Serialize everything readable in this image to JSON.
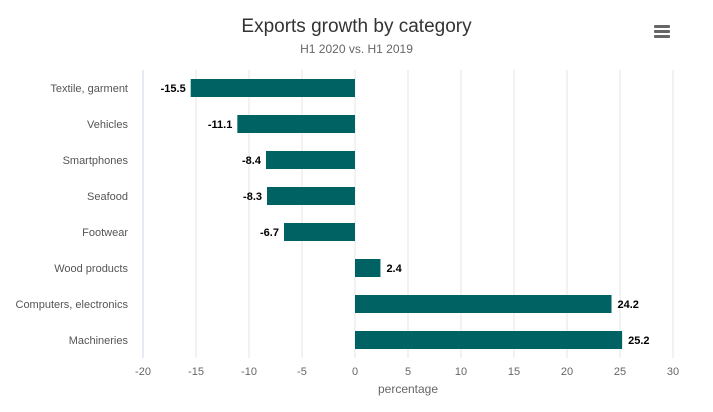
{
  "colors": {
    "bar": "#006262",
    "grid": "#e6e6e6"
  },
  "menu": {
    "icon": "hamburger-menu-icon"
  },
  "chart_data": {
    "type": "bar",
    "orientation": "horizontal",
    "title": "Exports growth by category",
    "subtitle": "H1 2020 vs. H1 2019",
    "xlabel": "percentage",
    "ylabel": "",
    "categories": [
      "Textile, garment",
      "Vehicles",
      "Smartphones",
      "Seafood",
      "Footwear",
      "Wood products",
      "Computers, electronics",
      "Machineries"
    ],
    "values": [
      -15.5,
      -11.1,
      -8.4,
      -8.3,
      -6.7,
      2.4,
      24.2,
      25.2
    ],
    "data_labels": [
      "-15.5",
      "-11.1",
      "-8.4",
      "-8.3",
      "-6.7",
      "2.4",
      "24.2",
      "25.2"
    ],
    "xlim": [
      -20,
      30
    ],
    "xticks": [
      "-20",
      "-15",
      "-10",
      "-5",
      "0",
      "5",
      "10",
      "15",
      "20",
      "25",
      "30"
    ],
    "grid": true,
    "legend": "none"
  }
}
